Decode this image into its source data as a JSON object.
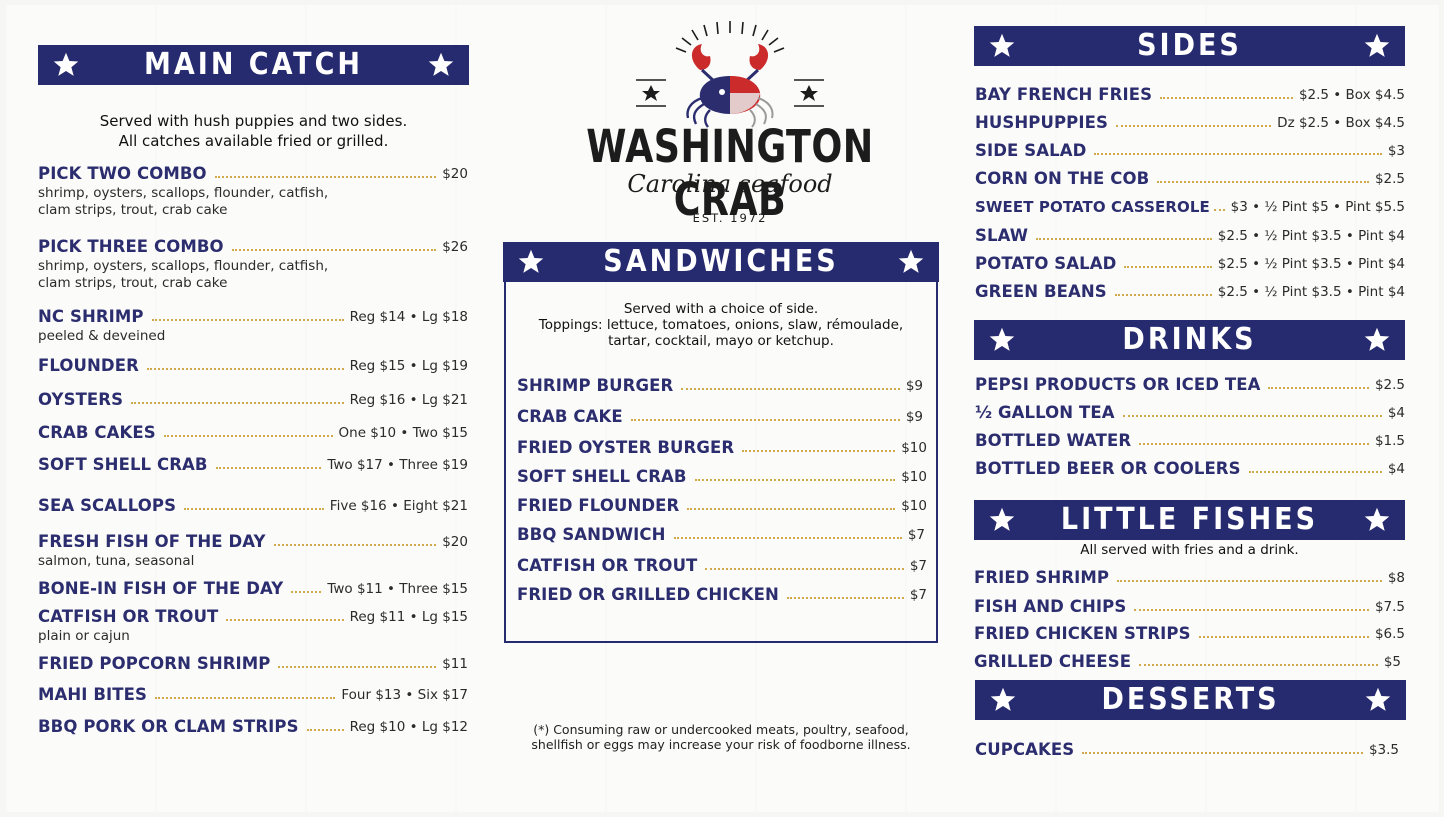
{
  "brand": {
    "name": "WASHINGTON CRAB",
    "tagline": "Carolina seafood",
    "est": "EST. 1972"
  },
  "colors": {
    "navy": "#262a6e",
    "gold_dots": "#d2a94a",
    "crab_blue": "#2b2d6e",
    "crab_red": "#cc2b2b"
  },
  "main_catch": {
    "title": "MAIN CATCH",
    "note_line1": "Served with hush puppies and two sides.",
    "note_line2": "All catches available fried or grilled.",
    "items": [
      {
        "name": "PICK TWO COMBO",
        "price": "$20",
        "desc1": "shrimp, oysters, scallops, flounder, catfish,",
        "desc2": "clam strips, trout, crab cake"
      },
      {
        "name": "PICK THREE COMBO",
        "price": "$26",
        "desc1": "shrimp, oysters, scallops, flounder, catfish,",
        "desc2": "clam strips, trout, crab cake"
      },
      {
        "name": "NC SHRIMP",
        "price": "Reg  $14  •  Lg  $18",
        "desc1": "peeled & deveined"
      },
      {
        "name": "FLOUNDER",
        "price": "Reg  $15  •  Lg  $19"
      },
      {
        "name": "OYSTERS",
        "price": "Reg  $16  •  Lg  $21"
      },
      {
        "name": "CRAB CAKES",
        "price": "One  $10  •  Two  $15"
      },
      {
        "name": "SOFT SHELL CRAB",
        "price": "Two  $17  •  Three  $19"
      },
      {
        "name": "SEA SCALLOPS",
        "price": "Five  $16  •  Eight  $21"
      },
      {
        "name": "FRESH FISH OF THE DAY",
        "price": "$20",
        "desc1": "salmon, tuna, seasonal"
      },
      {
        "name": "BONE-IN FISH OF THE DAY",
        "price": "Two  $11  •  Three  $15"
      },
      {
        "name": "CATFISH OR TROUT",
        "price": "Reg  $11 •  Lg  $15",
        "desc1": "plain or cajun"
      },
      {
        "name": "FRIED POPCORN SHRIMP",
        "price": "$11"
      },
      {
        "name": "MAHI BITES",
        "price": "Four  $13  •  Six  $17"
      },
      {
        "name": "BBQ PORK OR CLAM STRIPS",
        "price": "Reg  $10  •  Lg  $12"
      }
    ]
  },
  "sandwiches": {
    "title": "SANDWICHES",
    "note_line1": "Served with a choice of side.",
    "note_line2": "Toppings: lettuce, tomatoes, onions, slaw, rémoulade,",
    "note_line3": "tartar, cocktail, mayo or ketchup.",
    "items": [
      {
        "name": "SHRIMP BURGER",
        "price": "$9"
      },
      {
        "name": "CRAB CAKE",
        "price": "$9"
      },
      {
        "name": "FRIED OYSTER BURGER",
        "price": "$10"
      },
      {
        "name": "SOFT SHELL CRAB",
        "price": "$10"
      },
      {
        "name": "FRIED FLOUNDER",
        "price": "$10"
      },
      {
        "name": "BBQ SANDWICH",
        "price": "$7"
      },
      {
        "name": "CATFISH OR TROUT",
        "price": "$7"
      },
      {
        "name": "FRIED OR GRILLED CHICKEN",
        "price": "$7"
      }
    ]
  },
  "disclaimer": {
    "line1": "(*) Consuming raw or undercooked meats, poultry, seafood,",
    "line2": "shellfish or eggs may increase your risk of foodborne illness."
  },
  "sides": {
    "title": "SIDES",
    "items": [
      {
        "name": "BAY FRENCH FRIES",
        "price": "$2.5  •  Box  $4.5"
      },
      {
        "name": "HUSHPUPPIES",
        "price": "Dz  $2.5  •  Box  $4.5"
      },
      {
        "name": "SIDE SALAD",
        "price": "$3"
      },
      {
        "name": "CORN ON THE COB",
        "price": "$2.5"
      },
      {
        "name": "SWEET POTATO CASSEROLE",
        "price": "$3  •  ½ Pint  $5  •  Pint  $5.5"
      },
      {
        "name": "SLAW",
        "price": "$2.5  •  ½ Pint  $3.5  •  Pint  $4"
      },
      {
        "name": "POTATO SALAD",
        "price": "$2.5  •  ½ Pint  $3.5  •  Pint  $4"
      },
      {
        "name": "GREEN BEANS",
        "price": "$2.5  •  ½ Pint  $3.5  •  Pint  $4"
      }
    ]
  },
  "drinks": {
    "title": "DRINKS",
    "items": [
      {
        "name": "PEPSI PRODUCTS OR ICED TEA",
        "price": "$2.5"
      },
      {
        "name": "½ GALLON TEA",
        "price": "$4"
      },
      {
        "name": "BOTTLED WATER",
        "price": "$1.5"
      },
      {
        "name": "BOTTLED BEER OR COOLERS",
        "price": "$4"
      }
    ]
  },
  "little_fishes": {
    "title": "LITTLE FISHES",
    "note": "All served with fries and a drink.",
    "items": [
      {
        "name": "FRIED SHRIMP",
        "price": "$8"
      },
      {
        "name": "FISH AND CHIPS",
        "price": "$7.5"
      },
      {
        "name": "FRIED CHICKEN STRIPS",
        "price": "$6.5"
      },
      {
        "name": "GRILLED CHEESE",
        "price": "$5"
      }
    ]
  },
  "desserts": {
    "title": "DESSERTS",
    "items": [
      {
        "name": "CUPCAKES",
        "price": "$3.5"
      }
    ]
  }
}
